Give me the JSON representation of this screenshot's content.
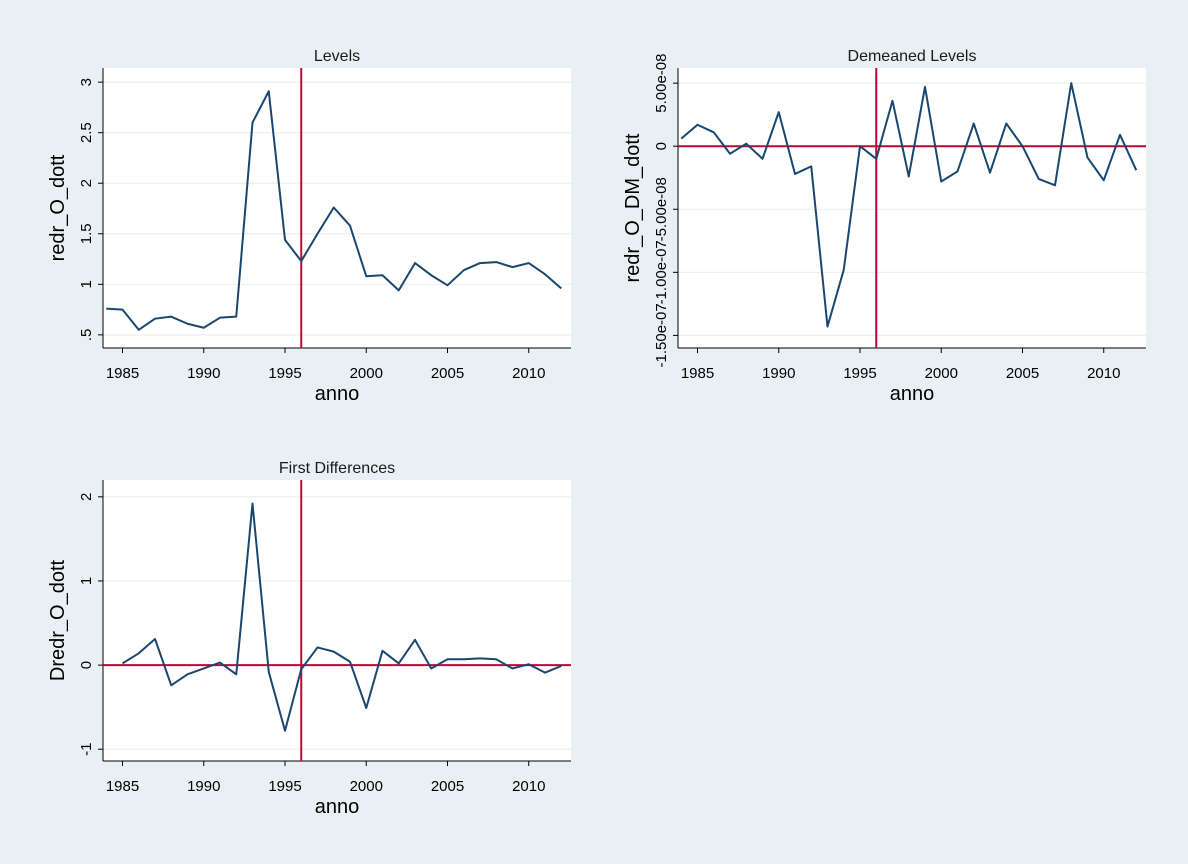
{
  "colors": {
    "page_background": "#e8f0f3",
    "plot_background": "#ffffff",
    "gridline": "#e8f0f3",
    "series_line": "#1a476f",
    "reference_line": "#c10534",
    "text": "#000000",
    "title_text": "#1a1a1a"
  },
  "chart_data": [
    {
      "type": "line",
      "title": "Levels",
      "xlabel": "anno",
      "ylabel": "redr_O_dott",
      "xlim": [
        1983.8,
        2012.6
      ],
      "ylim": [
        0.37,
        3.14
      ],
      "xticks": [
        1985,
        1990,
        1995,
        2000,
        2005,
        2010
      ],
      "xtick_labels": [
        "1985",
        "1990",
        "1995",
        "2000",
        "2005",
        "2010"
      ],
      "yticks": [
        0.5,
        1,
        1.5,
        2,
        2.5,
        3
      ],
      "ytick_labels": [
        ".5",
        "1",
        "1.5",
        "2",
        "2.5",
        "3"
      ],
      "grid": true,
      "vline": 1996,
      "hline": null,
      "series": [
        {
          "name": "redr_O_dott",
          "x": [
            1984,
            1985,
            1986,
            1987,
            1988,
            1989,
            1990,
            1991,
            1992,
            1993,
            1994,
            1995,
            1996,
            1997,
            1998,
            1999,
            2000,
            2001,
            2002,
            2003,
            2004,
            2005,
            2006,
            2007,
            2008,
            2009,
            2010,
            2011,
            2012
          ],
          "values": [
            0.76,
            0.75,
            0.55,
            0.66,
            0.68,
            0.61,
            0.57,
            0.67,
            0.68,
            2.6,
            2.91,
            1.44,
            1.23,
            1.5,
            1.76,
            1.58,
            1.08,
            1.09,
            0.94,
            1.21,
            1.09,
            0.99,
            1.14,
            1.21,
            1.22,
            1.17,
            1.21,
            1.1,
            0.96
          ]
        }
      ]
    },
    {
      "type": "line",
      "title": "Demeaned Levels",
      "xlabel": "anno",
      "ylabel": "redr_O_DM_dott",
      "xlim": [
        1983.8,
        2012.6
      ],
      "ylim": [
        -1.6e-07,
        6.2e-08
      ],
      "xticks": [
        1985,
        1990,
        1995,
        2000,
        2005,
        2010
      ],
      "xtick_labels": [
        "1985",
        "1990",
        "1995",
        "2000",
        "2005",
        "2010"
      ],
      "yticks": [
        -1.5e-07,
        -1e-07,
        -5e-08,
        0,
        5e-08
      ],
      "ytick_labels": [
        "-1.50e-07",
        "-1.00e-07",
        "-5.00e-08",
        "0",
        "5.00e-08"
      ],
      "grid": true,
      "vline": 1996,
      "hline": 0,
      "series": [
        {
          "name": "redr_O_DM_dott",
          "x": [
            1984,
            1985,
            1986,
            1987,
            1988,
            1989,
            1990,
            1991,
            1992,
            1993,
            1994,
            1995,
            1996,
            1997,
            1998,
            1999,
            2000,
            2001,
            2002,
            2003,
            2004,
            2005,
            2006,
            2007,
            2008,
            2009,
            2010,
            2011,
            2012
          ],
          "values": [
            6e-09,
            1.7e-08,
            1.1e-08,
            -6e-09,
            2e-09,
            -1e-08,
            2.7e-08,
            -2.2e-08,
            -1.6e-08,
            -1.43e-07,
            -9.8e-08,
            0,
            -1e-08,
            3.6e-08,
            -2.4e-08,
            4.7e-08,
            -2.8e-08,
            -2e-08,
            1.8e-08,
            -2.1e-08,
            1.8e-08,
            0,
            -2.6e-08,
            -3.1e-08,
            5e-08,
            -9e-09,
            -2.7e-08,
            9e-09,
            -1.9e-08
          ]
        }
      ]
    },
    {
      "type": "line",
      "title": "First Differences",
      "xlabel": "anno",
      "ylabel": "Dredr_O_dott",
      "xlim": [
        1983.8,
        2012.6
      ],
      "ylim": [
        -1.14,
        2.2
      ],
      "xticks": [
        1985,
        1990,
        1995,
        2000,
        2005,
        2010
      ],
      "xtick_labels": [
        "1985",
        "1990",
        "1995",
        "2000",
        "2005",
        "2010"
      ],
      "yticks": [
        -1,
        0,
        1,
        2
      ],
      "ytick_labels": [
        "-1",
        "0",
        "1",
        "2"
      ],
      "grid": true,
      "vline": 1996,
      "hline": 0,
      "series": [
        {
          "name": "Dredr_O_dott",
          "x": [
            1985,
            1986,
            1987,
            1988,
            1989,
            1990,
            1991,
            1992,
            1993,
            1994,
            1995,
            1996,
            1997,
            1998,
            1999,
            2000,
            2001,
            2002,
            2003,
            2004,
            2005,
            2006,
            2007,
            2008,
            2009,
            2010,
            2011,
            2012
          ],
          "values": [
            0.02,
            0.14,
            0.31,
            -0.24,
            -0.11,
            -0.04,
            0.03,
            -0.11,
            1.92,
            -0.08,
            -0.78,
            -0.05,
            0.21,
            0.16,
            0.04,
            -0.51,
            0.17,
            0.02,
            0.3,
            -0.04,
            0.07,
            0.07,
            0.08,
            0.07,
            -0.04,
            0.01,
            -0.09,
            -0.01
          ]
        }
      ]
    }
  ]
}
